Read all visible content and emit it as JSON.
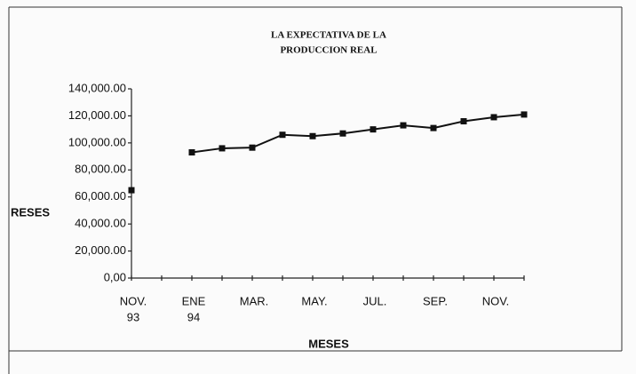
{
  "chart_data": {
    "type": "line",
    "title": [
      "LA EXPECTATIVA DE LA",
      "PRODUCCION REAL"
    ],
    "xlabel": "MESES",
    "ylabel": "RESES",
    "categories": [
      [
        "NOV.",
        "93"
      ],
      null,
      [
        "ENE",
        "94"
      ],
      null,
      [
        "MAR."
      ],
      null,
      [
        "MAY."
      ],
      null,
      [
        "JUL."
      ],
      null,
      [
        "SEP."
      ],
      null,
      [
        "NOV."
      ],
      null
    ],
    "series": [
      {
        "name": "PRODUCCION REAL",
        "color": "#111111",
        "values": [
          65000,
          null,
          93000,
          96000,
          96500,
          106000,
          105000,
          107000,
          110000,
          113000,
          111000,
          116000,
          119000,
          121000
        ]
      }
    ],
    "ylim": [
      0,
      140000
    ],
    "yticks": [
      {
        "value": 0,
        "label": "0,00"
      },
      {
        "value": 20000,
        "label": "20,000.00"
      },
      {
        "value": 40000,
        "label": "40,000.00"
      },
      {
        "value": 60000,
        "label": "60,000.00"
      },
      {
        "value": 80000,
        "label": "80,000.00"
      },
      {
        "value": 100000,
        "label": "100,000.00"
      },
      {
        "value": 120000,
        "label": "120,000.00"
      },
      {
        "value": 140000,
        "label": "140,000.00"
      }
    ]
  }
}
